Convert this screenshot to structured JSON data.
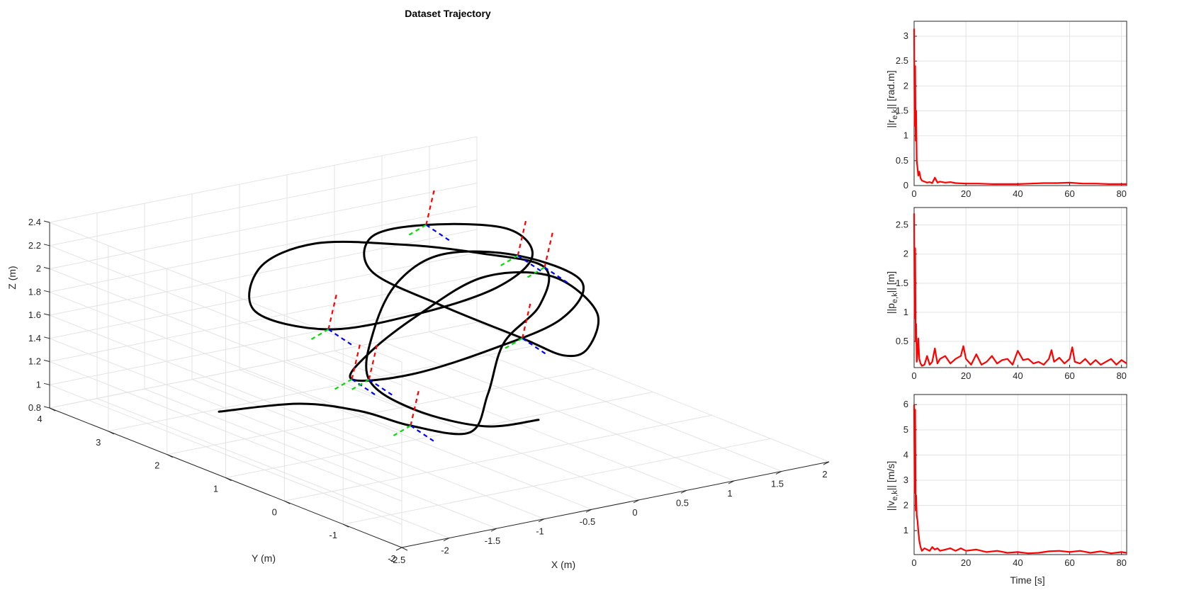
{
  "figure": {
    "main": {
      "title": "Dataset Trajectory",
      "xlabel": "X (m)",
      "ylabel": "Y (m)",
      "zlabel": "Z (m)"
    },
    "panels": [
      {
        "ylabel": "||r",
        "ysub": "e,k",
        "yunit": "|| [rad.m]"
      },
      {
        "ylabel": "||p",
        "ysub": "e,k",
        "yunit": "|| [m]"
      },
      {
        "ylabel": "||v",
        "ysub": "e,k",
        "yunit": "|| [m/s]"
      }
    ],
    "time_label": "Time [s]"
  },
  "chart_data": [
    {
      "type": "line",
      "projection": "3d",
      "title": "Dataset Trajectory",
      "xlabel": "X (m)",
      "ylabel": "Y (m)",
      "zlabel": "Z (m)",
      "xlim": [
        -2.5,
        2
      ],
      "ylim": [
        -2,
        4
      ],
      "zlim": [
        0.8,
        2.4
      ],
      "xticks": [
        "-2.5",
        "-2",
        "-1.5",
        "-1",
        "-0.5",
        "0",
        "0.5",
        "1",
        "1.5",
        "2"
      ],
      "yticks": [
        "-2",
        "-1",
        "0",
        "1",
        "2",
        "3",
        "4"
      ],
      "zticks": [
        "0.8",
        "1",
        "1.2",
        "1.4",
        "1.6",
        "1.8",
        "2",
        "2.2",
        "2.4"
      ],
      "grid": true,
      "series": [
        {
          "color": "#000000",
          "points": [
            [
              -2.2,
              1.6,
              1.2
            ],
            [
              -1.6,
              1.2,
              1.25
            ],
            [
              -1.2,
              0.8,
              1.2
            ],
            [
              -0.8,
              0.6,
              1.05
            ],
            [
              -0.3,
              0.4,
              0.95
            ],
            [
              0.2,
              0.9,
              1.1
            ],
            [
              0.8,
              1.6,
              1.3
            ],
            [
              1.3,
              1.8,
              1.5
            ],
            [
              1.6,
              2.2,
              1.7
            ],
            [
              1.3,
              2.8,
              1.75
            ],
            [
              0.6,
              3.0,
              1.9
            ],
            [
              -0.2,
              3.2,
              2.0
            ],
            [
              -0.9,
              3.0,
              1.95
            ],
            [
              -1.2,
              2.6,
              1.7
            ],
            [
              -0.8,
              2.0,
              1.6
            ],
            [
              -0.1,
              1.6,
              1.7
            ],
            [
              0.6,
              1.4,
              1.85
            ],
            [
              1.1,
              1.6,
              2.0
            ],
            [
              1.2,
              2.2,
              2.1
            ],
            [
              0.6,
              2.6,
              2.15
            ],
            [
              -0.1,
              2.4,
              2.2
            ],
            [
              -0.4,
              1.9,
              2.05
            ],
            [
              -0.1,
              1.2,
              1.85
            ],
            [
              0.5,
              0.8,
              1.55
            ],
            [
              1.0,
              0.9,
              1.3
            ],
            [
              1.5,
              1.3,
              1.2
            ],
            [
              1.9,
              1.8,
              1.35
            ],
            [
              1.8,
              2.4,
              1.55
            ],
            [
              1.2,
              2.6,
              1.6
            ],
            [
              0.4,
              2.4,
              1.45
            ],
            [
              -0.3,
              2.1,
              1.3
            ],
            [
              -0.8,
              1.6,
              1.25
            ],
            [
              -0.6,
              0.9,
              1.4
            ],
            [
              0.0,
              0.5,
              1.6
            ],
            [
              0.6,
              0.3,
              1.8
            ],
            [
              1.0,
              0.6,
              2.0
            ],
            [
              0.7,
              1.2,
              2.15
            ],
            [
              0.1,
              1.5,
              2.2
            ],
            [
              -0.5,
              1.3,
              2.1
            ],
            [
              -1.0,
              0.9,
              1.85
            ],
            [
              -1.3,
              0.5,
              1.55
            ],
            [
              -1.0,
              0.2,
              1.3
            ],
            [
              -0.4,
              0.0,
              1.1
            ],
            [
              0.3,
              0.2,
              1.0
            ]
          ]
        }
      ]
    },
    {
      "type": "line",
      "title": "",
      "xlabel": "",
      "ylabel": "||re,k|| [rad.m]",
      "xlim": [
        0,
        82
      ],
      "ylim": [
        0,
        3.3
      ],
      "xticks": [
        0,
        20,
        40,
        60,
        80
      ],
      "yticks": [
        0,
        0.5,
        1,
        1.5,
        2,
        2.5,
        3
      ],
      "grid": true,
      "series": [
        {
          "color": "#ff0000",
          "x": [
            0,
            0.2,
            0.4,
            0.6,
            0.8,
            1.0,
            1.3,
            1.6,
            2,
            2.5,
            3,
            4,
            5,
            6,
            7,
            8,
            9,
            10,
            12,
            14,
            16,
            20,
            25,
            30,
            35,
            40,
            45,
            50,
            55,
            60,
            65,
            70,
            75,
            82
          ],
          "y": [
            3.15,
            1.2,
            2.4,
            0.9,
            1.5,
            0.5,
            0.35,
            0.2,
            0.28,
            0.15,
            0.1,
            0.08,
            0.06,
            0.07,
            0.05,
            0.16,
            0.06,
            0.08,
            0.06,
            0.07,
            0.05,
            0.04,
            0.04,
            0.03,
            0.03,
            0.03,
            0.04,
            0.05,
            0.05,
            0.06,
            0.04,
            0.04,
            0.03,
            0.03
          ]
        }
      ]
    },
    {
      "type": "line",
      "title": "",
      "xlabel": "",
      "ylabel": "||pe,k|| [m]",
      "xlim": [
        0,
        82
      ],
      "ylim": [
        0.05,
        2.8
      ],
      "xticks": [
        0,
        20,
        40,
        60,
        80
      ],
      "yticks": [
        0.5,
        1,
        1.5,
        2,
        2.5
      ],
      "grid": true,
      "series": [
        {
          "color": "#ff0000",
          "x": [
            0,
            0.2,
            0.4,
            0.6,
            0.8,
            1.0,
            1.3,
            1.6,
            2,
            2.5,
            3,
            4,
            5,
            6,
            7,
            8,
            9,
            10,
            12,
            14,
            16,
            18,
            19,
            20,
            22,
            24,
            26,
            28,
            30,
            32,
            34,
            36,
            38,
            40,
            42,
            44,
            46,
            48,
            50,
            52,
            53,
            54,
            56,
            58,
            60,
            61,
            62,
            64,
            66,
            68,
            70,
            72,
            74,
            76,
            78,
            80,
            82
          ],
          "y": [
            2.7,
            0.9,
            2.1,
            0.5,
            0.8,
            0.15,
            0.3,
            0.55,
            0.2,
            0.12,
            0.08,
            0.1,
            0.25,
            0.1,
            0.15,
            0.38,
            0.12,
            0.2,
            0.25,
            0.12,
            0.2,
            0.25,
            0.42,
            0.2,
            0.1,
            0.28,
            0.1,
            0.15,
            0.25,
            0.12,
            0.18,
            0.2,
            0.1,
            0.34,
            0.18,
            0.2,
            0.12,
            0.15,
            0.1,
            0.2,
            0.35,
            0.15,
            0.22,
            0.12,
            0.2,
            0.4,
            0.15,
            0.12,
            0.2,
            0.1,
            0.18,
            0.1,
            0.15,
            0.2,
            0.1,
            0.18,
            0.12
          ]
        }
      ]
    },
    {
      "type": "line",
      "title": "",
      "xlabel": "Time [s]",
      "ylabel": "||ve,k|| [m/s]",
      "xlim": [
        0,
        82
      ],
      "ylim": [
        0.05,
        6.4
      ],
      "xticks": [
        0,
        20,
        40,
        60,
        80
      ],
      "yticks": [
        1,
        2,
        3,
        4,
        5,
        6
      ],
      "grid": true,
      "series": [
        {
          "color": "#ff0000",
          "x": [
            0,
            0.2,
            0.4,
            0.6,
            0.8,
            1.0,
            1.3,
            1.6,
            2,
            2.5,
            3,
            4,
            5,
            6,
            7,
            8,
            9,
            10,
            12,
            14,
            16,
            18,
            20,
            24,
            28,
            32,
            36,
            40,
            44,
            48,
            52,
            56,
            60,
            64,
            68,
            72,
            76,
            80,
            82
          ],
          "y": [
            6.0,
            2.5,
            5.8,
            1.8,
            2.4,
            1.6,
            1.4,
            1.0,
            0.6,
            0.35,
            0.2,
            0.3,
            0.25,
            0.2,
            0.35,
            0.25,
            0.3,
            0.2,
            0.25,
            0.3,
            0.2,
            0.3,
            0.2,
            0.25,
            0.15,
            0.2,
            0.12,
            0.15,
            0.1,
            0.12,
            0.18,
            0.2,
            0.15,
            0.2,
            0.12,
            0.18,
            0.1,
            0.15,
            0.12
          ]
        }
      ]
    }
  ]
}
